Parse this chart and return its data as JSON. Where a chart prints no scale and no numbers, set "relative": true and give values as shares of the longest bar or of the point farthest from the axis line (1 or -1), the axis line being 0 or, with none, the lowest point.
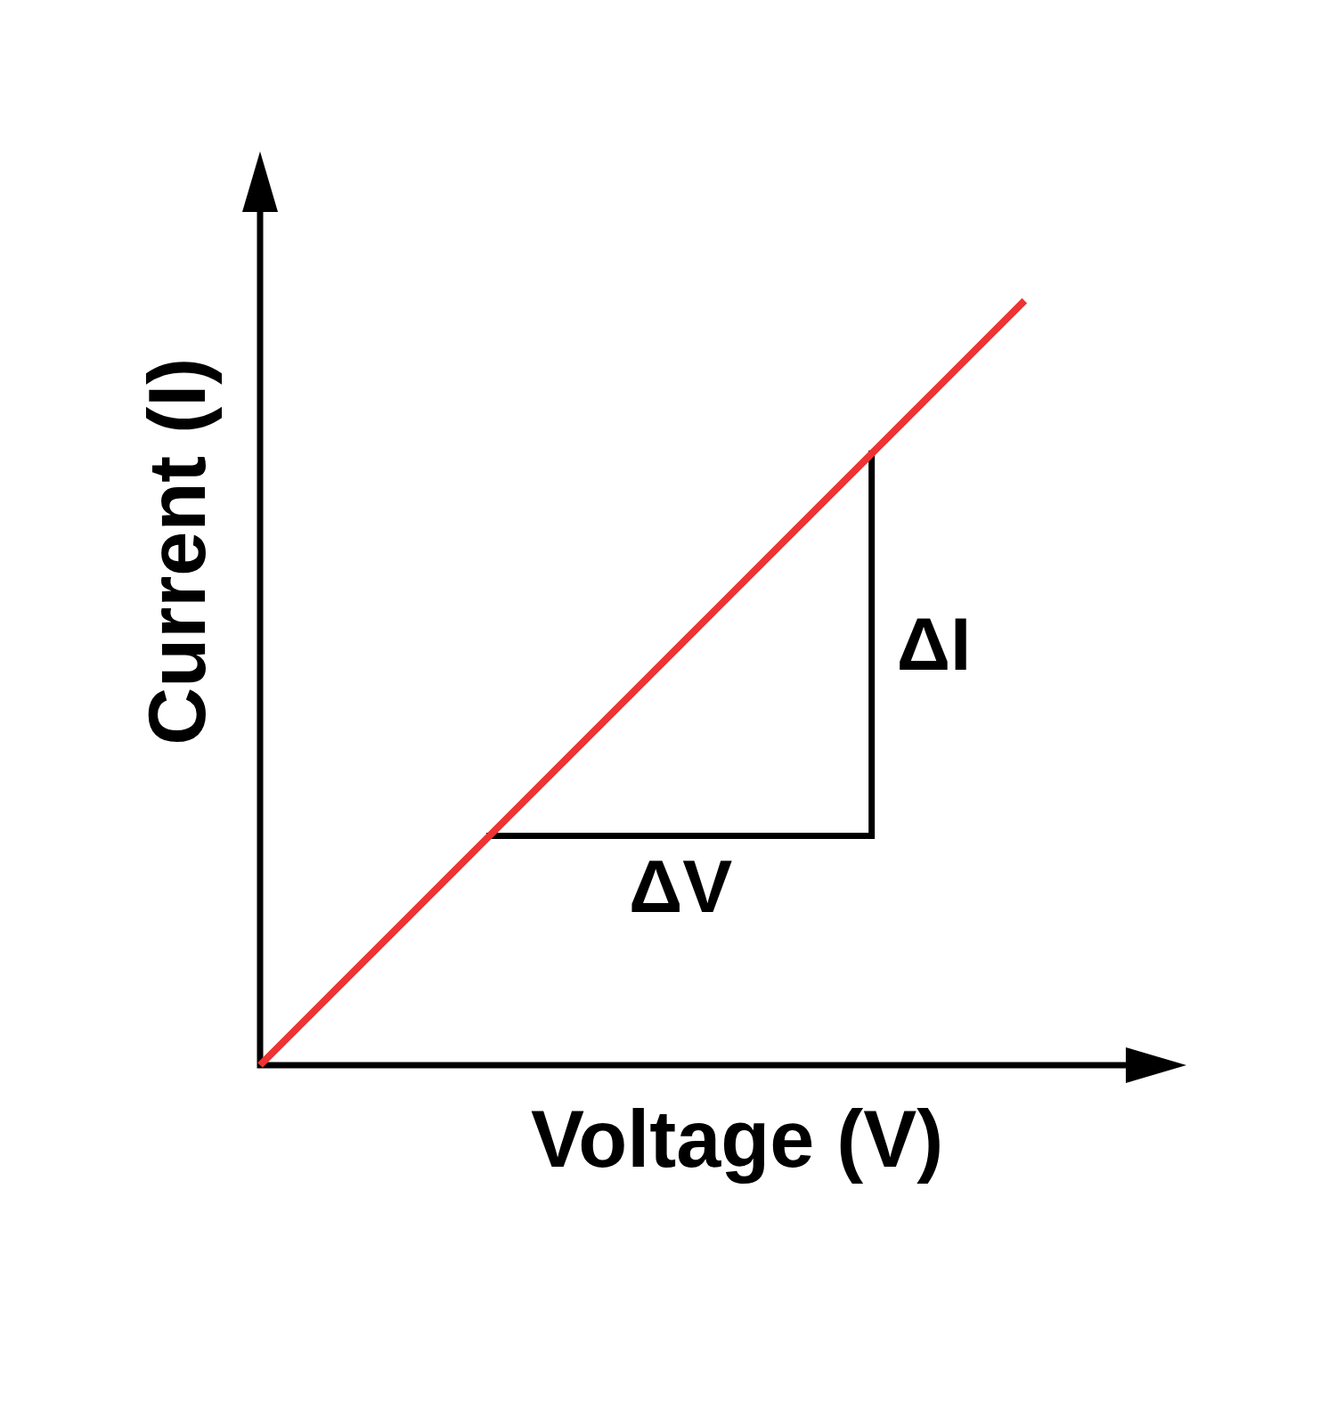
{
  "chart_data": {
    "type": "line",
    "xlabel": "Voltage (V)",
    "ylabel": "Current (I)",
    "relative": true,
    "categories": [
      null,
      null,
      null,
      null,
      null,
      null,
      null,
      null,
      null,
      null,
      null,
      null,
      null
    ],
    "series": [
      {
        "color": "#ee3333",
        "values": [
          0,
          0.1,
          0.2,
          0.3,
          0.4,
          0.5,
          0.6,
          0.7,
          0.8,
          0.9,
          1,
          null,
          null
        ]
      },
      {
        "type": "step",
        "color": "#000000",
        "values": [
          null,
          null,
          null,
          0.3,
          null,
          null,
          null,
          null,
          0.8,
          null,
          null,
          null,
          null
        ]
      }
    ],
    "annotations": [
      "ΔV",
      "ΔI"
    ]
  }
}
